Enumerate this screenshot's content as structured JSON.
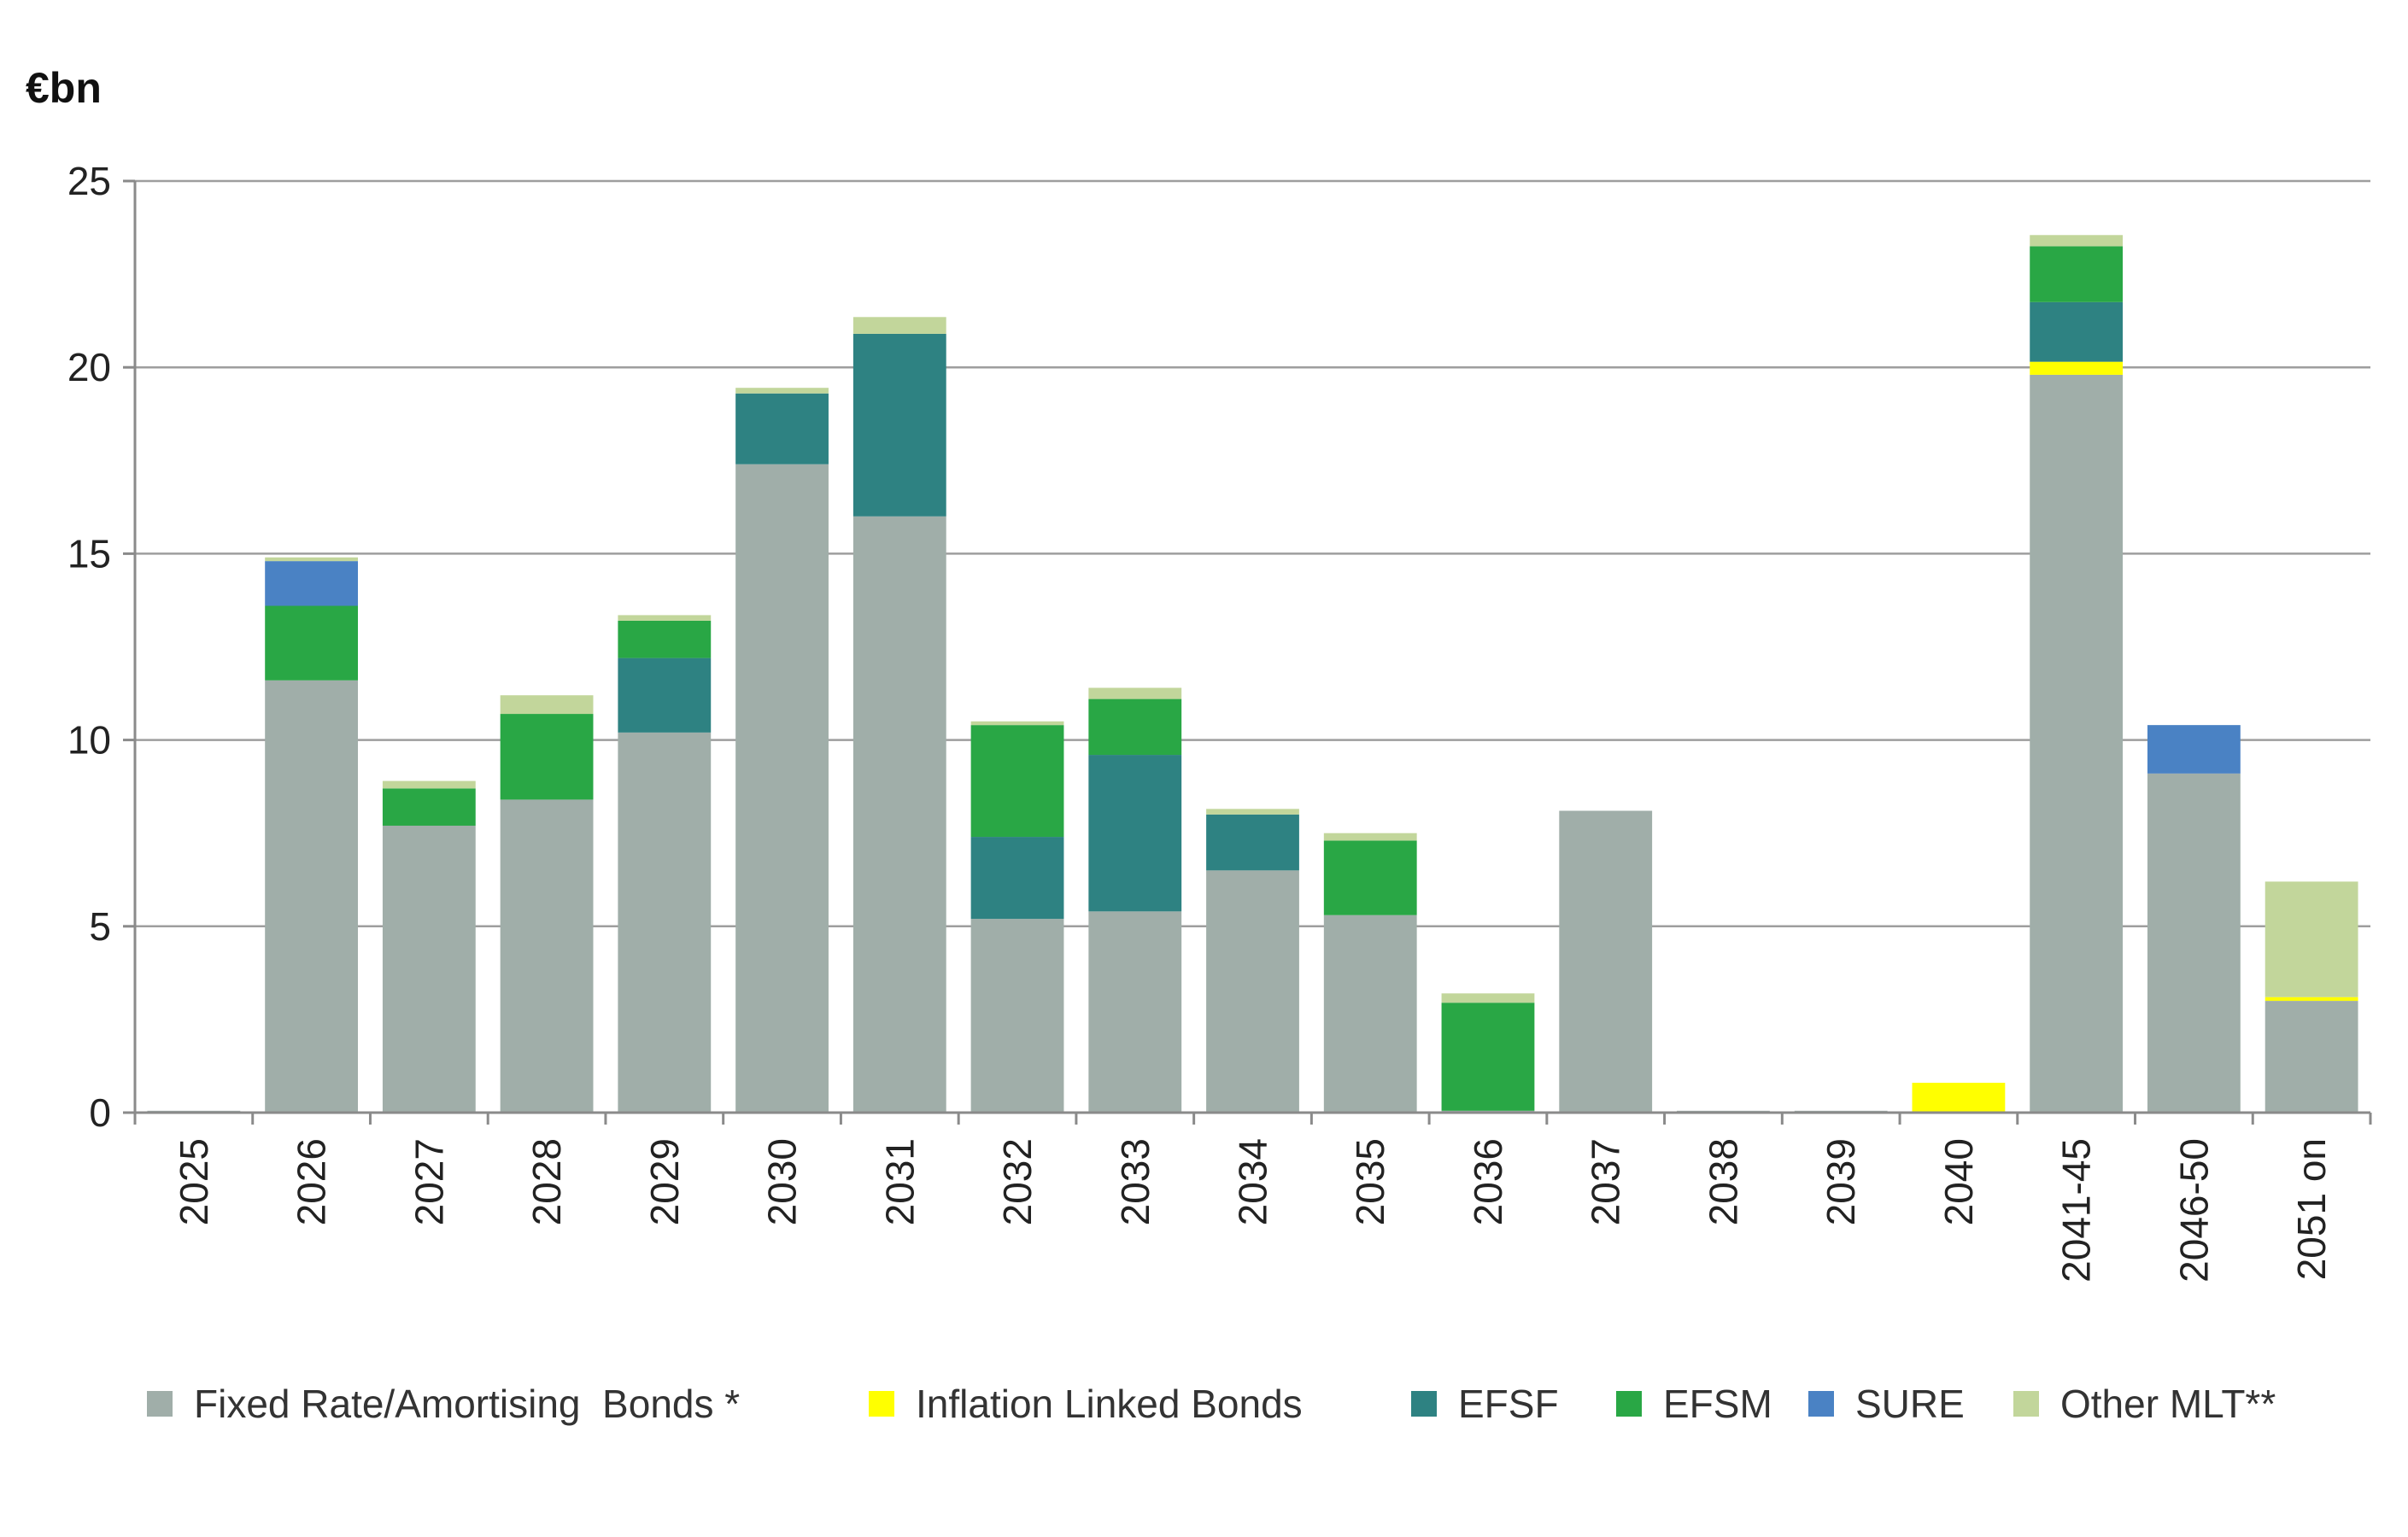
{
  "chart_data": {
    "type": "bar",
    "stacked": true,
    "title": "",
    "ylabel": "€bn",
    "xlabel": "",
    "ylim": [
      0,
      25
    ],
    "yticks": [
      "0",
      "5",
      "10",
      "15",
      "20",
      "25"
    ],
    "grid": true,
    "legend_position": "bottom",
    "categories": [
      "2025",
      "2026",
      "2027",
      "2028",
      "2029",
      "2030",
      "2031",
      "2032",
      "2033",
      "2034",
      "2035",
      "2036",
      "2037",
      "2038",
      "2039",
      "2040",
      "2041-45",
      "2046-50",
      "2051 on"
    ],
    "series": [
      {
        "name": "Fixed Rate/Amortising  Bonds *",
        "color": "#a0aea9",
        "values": [
          0.05,
          11.6,
          7.7,
          8.4,
          10.2,
          17.4,
          16.0,
          5.2,
          5.4,
          6.5,
          5.3,
          0.05,
          8.1,
          0.05,
          0.05,
          0,
          19.8,
          9.1,
          3.0
        ]
      },
      {
        "name": "Inflation Linked Bonds",
        "color": "#ffff00",
        "values": [
          0,
          0,
          0,
          0,
          0,
          0,
          0,
          0,
          0,
          0,
          0,
          0,
          0,
          0,
          0,
          0.8,
          0.35,
          0,
          0.1
        ]
      },
      {
        "name": "EFSF",
        "color": "#2e8282",
        "values": [
          0,
          0,
          0,
          0,
          2.0,
          1.9,
          4.9,
          2.2,
          4.2,
          1.5,
          0,
          0,
          0,
          0,
          0,
          0,
          1.6,
          0,
          0
        ]
      },
      {
        "name": "EFSM",
        "color": "#29a745",
        "values": [
          0,
          2.0,
          1.0,
          2.3,
          1.0,
          0,
          0,
          3.0,
          1.5,
          0,
          2.0,
          2.9,
          0,
          0,
          0,
          0,
          1.5,
          0,
          0
        ]
      },
      {
        "name": "SURE",
        "color": "#4a82c4",
        "values": [
          0,
          1.2,
          0,
          0,
          0,
          0,
          0,
          0,
          0,
          0,
          0,
          0,
          0,
          0,
          0,
          0,
          0,
          1.3,
          0
        ]
      },
      {
        "name": "Other MLT**",
        "color": "#c2d69b",
        "values": [
          0,
          0.1,
          0.2,
          0.5,
          0.15,
          0.15,
          0.45,
          0.1,
          0.3,
          0.15,
          0.2,
          0.25,
          0,
          0,
          0,
          0,
          0.3,
          0,
          3.1
        ]
      }
    ]
  }
}
